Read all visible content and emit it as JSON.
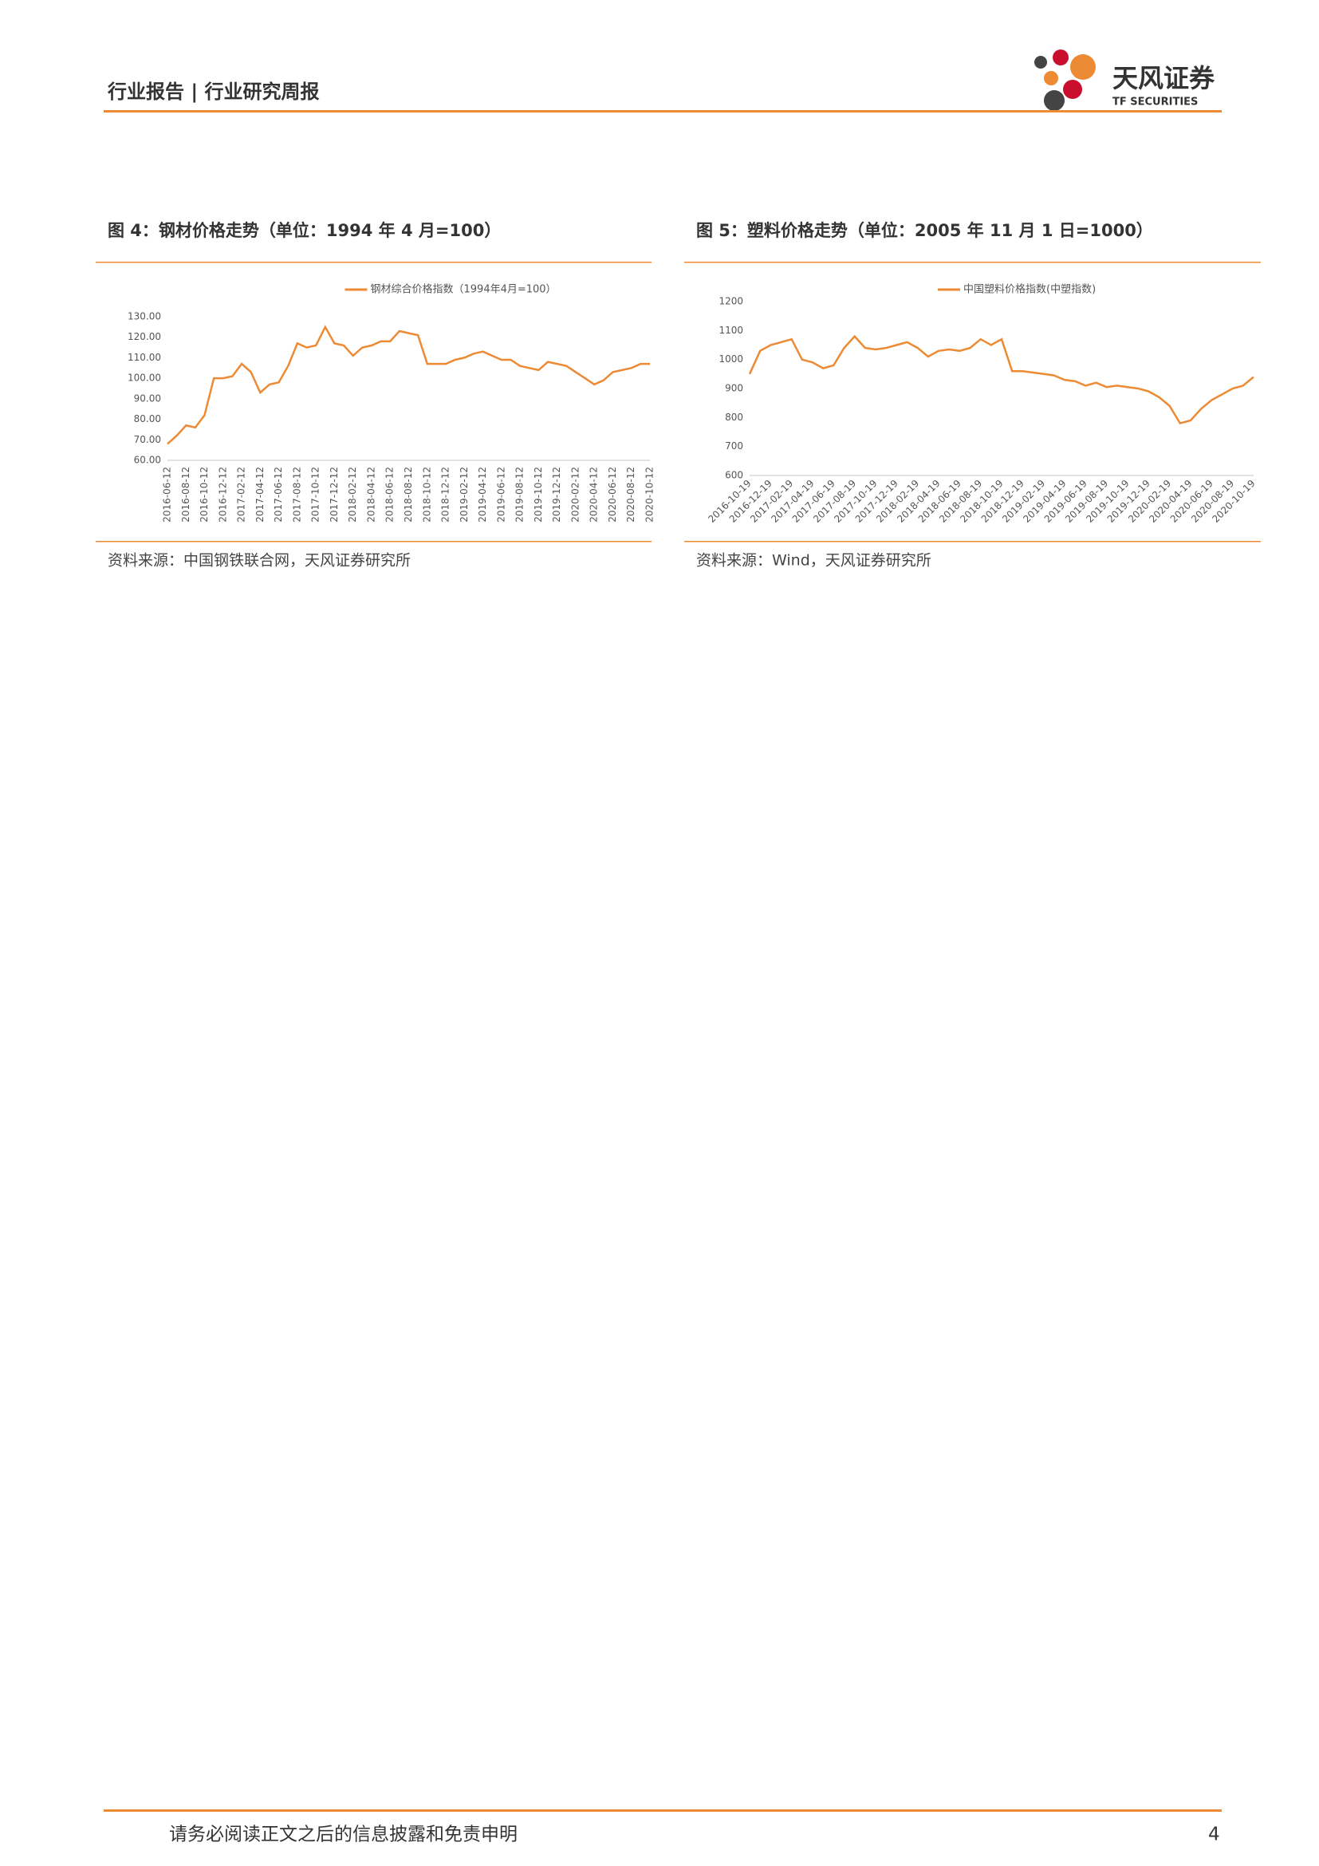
{
  "header": {
    "title": "行业报告 | 行业研究周报",
    "logo_cn": "天风证券",
    "logo_en": "TF SECURITIES"
  },
  "figures": [
    {
      "title": "图 4：钢材价格走势（单位：1994 年 4 月=100）",
      "source": "资料来源：中国钢铁联合网，天风证券研究所"
    },
    {
      "title": "图 5：塑料价格走势（单位：2005 年 11 月 1 日=1000）",
      "source": "资料来源：Wind，天风证券研究所"
    }
  ],
  "chart_data": [
    {
      "type": "line",
      "categories": [
        "2016-06-12",
        null,
        "2016-08-12",
        null,
        "2016-10-12",
        null,
        "2016-12-12",
        null,
        "2017-02-12",
        null,
        "2017-04-12",
        null,
        "2017-06-12",
        null,
        "2017-08-12",
        null,
        "2017-10-12",
        null,
        "2017-12-12",
        null,
        "2018-02-12",
        null,
        "2018-04-12",
        null,
        "2018-06-12",
        null,
        "2018-08-12",
        null,
        "2018-10-12",
        null,
        "2018-12-12",
        null,
        "2019-02-12",
        null,
        "2019-04-12",
        null,
        "2019-06-12",
        null,
        "2019-08-12",
        null,
        "2019-10-12",
        null,
        "2019-12-12",
        null,
        "2020-02-12",
        null,
        "2020-04-12",
        null,
        "2020-06-12",
        null,
        "2020-08-12",
        null,
        "2020-10-12"
      ],
      "series": [
        {
          "name": "钢材综合价格指数（1994年4月=100）",
          "color": "#ed8a34",
          "values": [
            68,
            72,
            77,
            76,
            82,
            100,
            100,
            101,
            107,
            103,
            93,
            97,
            98,
            106,
            117,
            115,
            116,
            125,
            117,
            116,
            111,
            115,
            116,
            118,
            118,
            123,
            122,
            121,
            107,
            107,
            107,
            109,
            110,
            112,
            113,
            111,
            109,
            109,
            106,
            105,
            104,
            108,
            107,
            106,
            103,
            100,
            97,
            99,
            103,
            104,
            105,
            107,
            107
          ]
        }
      ],
      "ylim": [
        60,
        130
      ],
      "yticks": [
        {
          "value": 60,
          "label": "60.00"
        },
        {
          "value": 70,
          "label": "70.00"
        },
        {
          "value": 80,
          "label": "80.00"
        },
        {
          "value": 90,
          "label": "90.00"
        },
        {
          "value": 100,
          "label": "100.00"
        },
        {
          "value": 110,
          "label": "110.00"
        },
        {
          "value": 120,
          "label": "120.00"
        },
        {
          "value": 130,
          "label": "130.00"
        }
      ],
      "legend": "top"
    },
    {
      "type": "line",
      "categories": [
        "2016-10-19",
        null,
        "2016-12-19",
        null,
        "2017-02-19",
        null,
        "2017-04-19",
        null,
        "2017-06-19",
        null,
        "2017-08-19",
        null,
        "2017-10-19",
        null,
        "2017-12-19",
        null,
        "2018-02-19",
        null,
        "2018-04-19",
        null,
        "2018-06-19",
        null,
        "2018-08-19",
        null,
        "2018-10-19",
        null,
        "2018-12-19",
        null,
        "2019-02-19",
        null,
        "2019-04-19",
        null,
        "2019-06-19",
        null,
        "2019-08-19",
        null,
        "2019-10-19",
        null,
        "2019-12-19",
        null,
        "2020-02-19",
        null,
        "2020-04-19",
        null,
        "2020-06-19",
        null,
        "2020-08-19",
        null,
        "2020-10-19"
      ],
      "series": [
        {
          "name": "中国塑料价格指数(中塑指数)",
          "color": "#ed8a34",
          "values": [
            950,
            1030,
            1050,
            1060,
            1070,
            1000,
            990,
            970,
            980,
            1040,
            1080,
            1040,
            1035,
            1040,
            1050,
            1060,
            1040,
            1010,
            1030,
            1035,
            1030,
            1040,
            1070,
            1050,
            1070,
            960,
            960,
            955,
            950,
            945,
            930,
            925,
            910,
            920,
            905,
            910,
            905,
            900,
            890,
            870,
            840,
            780,
            790,
            830,
            860,
            880,
            900,
            910,
            940
          ]
        }
      ],
      "ylim": [
        600,
        1200
      ],
      "yticks": [
        600,
        700,
        800,
        900,
        1000,
        1100,
        1200
      ],
      "legend": "top"
    }
  ],
  "footer": {
    "text": "请务必阅读正文之后的信息披露和免责申明",
    "page": "4"
  }
}
